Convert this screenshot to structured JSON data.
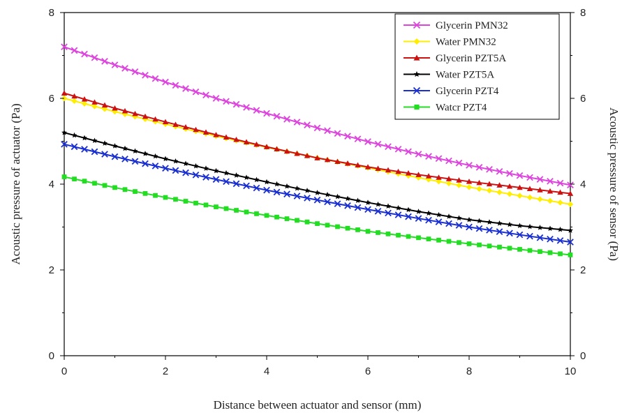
{
  "chart_data": {
    "type": "line",
    "xlabel": "Distance between actuator and sensor (mm)",
    "ylabel": "Acoustic pressure of actuator (Pa)",
    "y2label": "Acoustic pressure of sensor (Pa)",
    "xlim": [
      0,
      10
    ],
    "ylim": [
      0,
      8
    ],
    "y2lim": [
      0,
      8
    ],
    "xticks": [
      0,
      2,
      4,
      6,
      8,
      10
    ],
    "yticks": [
      0,
      2,
      4,
      6,
      8
    ],
    "grid": false,
    "legend_position": "top-right",
    "x": [
      0,
      1,
      2,
      3,
      4,
      5,
      6,
      7,
      8,
      9,
      10
    ],
    "series": [
      {
        "name": "Glycerin PMN32",
        "color": "#dd44dd",
        "marker": "x",
        "values": [
          7.2,
          6.78,
          6.38,
          6.0,
          5.65,
          5.31,
          4.99,
          4.7,
          4.44,
          4.2,
          3.98
        ]
      },
      {
        "name": "Water PMN32",
        "color": "#ffee00",
        "marker": "diamond",
        "values": [
          6.0,
          5.69,
          5.4,
          5.12,
          4.86,
          4.61,
          4.38,
          4.15,
          3.93,
          3.73,
          3.53
        ]
      },
      {
        "name": "Glycerin PZT5A",
        "color": "#cc1111",
        "marker": "triangle",
        "values": [
          6.12,
          5.77,
          5.45,
          5.15,
          4.87,
          4.61,
          4.4,
          4.22,
          4.06,
          3.92,
          3.78
        ]
      },
      {
        "name": "Water PZT5A",
        "color": "#000000",
        "marker": "star",
        "values": [
          5.2,
          4.89,
          4.59,
          4.31,
          4.05,
          3.8,
          3.57,
          3.36,
          3.17,
          3.03,
          2.92
        ]
      },
      {
        "name": "Glycerin PZT4",
        "color": "#1a2fd0",
        "marker": "x",
        "values": [
          4.93,
          4.64,
          4.37,
          4.11,
          3.86,
          3.63,
          3.41,
          3.2,
          3.0,
          2.82,
          2.65
        ]
      },
      {
        "name": "Watcr PZT4",
        "color": "#22dd22",
        "marker": "square",
        "values": [
          4.17,
          3.92,
          3.69,
          3.47,
          3.27,
          3.08,
          2.9,
          2.75,
          2.61,
          2.48,
          2.35
        ]
      }
    ]
  }
}
